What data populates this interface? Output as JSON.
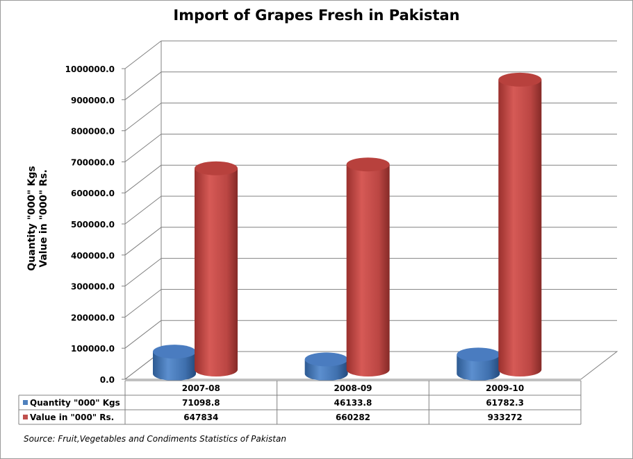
{
  "chart_data": {
    "type": "bar",
    "title": "Import of Grapes Fresh in Pakistan",
    "ylabel_line1": "Quantity \"000\" Kgs",
    "ylabel_line2": "Value in \"000\" Rs.",
    "xlabel": "",
    "categories": [
      "2007-08",
      "2008-09",
      "2009-10"
    ],
    "ylim": [
      0,
      1000000
    ],
    "yticks": [
      0,
      100000,
      200000,
      300000,
      400000,
      500000,
      600000,
      700000,
      800000,
      900000,
      1000000
    ],
    "ytick_labels": [
      "0.0",
      "100000.0",
      "200000.0",
      "300000.0",
      "400000.0",
      "500000.0",
      "600000.0",
      "700000.0",
      "800000.0",
      "900000.0",
      "1000000.0"
    ],
    "series": [
      {
        "name": "Quantity \"000\" Kgs",
        "values": [
          71098.8,
          46133.8,
          61782.3
        ],
        "value_labels": [
          "71098.8",
          "46133.8",
          "61782.3"
        ],
        "color": "#4f81bd"
      },
      {
        "name": "Value in \"000\" Rs.",
        "values": [
          647834,
          660282,
          933272
        ],
        "value_labels": [
          "647834",
          "660282",
          "933272"
        ],
        "color": "#c0504d"
      }
    ],
    "grid": true,
    "legend": "data-table",
    "style": "3d-cylinder"
  },
  "source_note": "Source: Fruit,Vegetables and Condiments Statistics of Pakistan"
}
